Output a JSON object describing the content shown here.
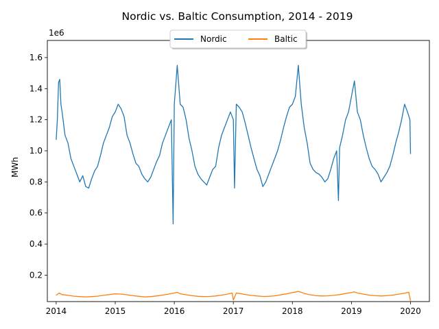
{
  "chart_data": {
    "type": "line",
    "title": "Nordic vs. Baltic Consumption,  2014 - 2019",
    "xlabel": "",
    "ylabel": "MWh",
    "y_offset_label": "1e6",
    "xlim": [
      2013.85,
      2020.32
    ],
    "ylim": [
      0.03,
      1.71
    ],
    "x_ticks": [
      2014,
      2015,
      2016,
      2017,
      2018,
      2019,
      2020
    ],
    "x_tick_labels": [
      "2014",
      "2015",
      "2016",
      "2017",
      "2018",
      "2019",
      "2020"
    ],
    "y_ticks": [
      0.2,
      0.4,
      0.6,
      0.8,
      1.0,
      1.2,
      1.4,
      1.6
    ],
    "y_tick_labels": [
      "0.2",
      "0.4",
      "0.6",
      "0.8",
      "1.0",
      "1.2",
      "1.4",
      "1.6"
    ],
    "grid": false,
    "legend_position": "top-center",
    "series": [
      {
        "name": "Nordic",
        "color": "#1f77b4",
        "x": [
          2014.0,
          2014.02,
          2014.04,
          2014.06,
          2014.08,
          2014.1,
          2014.15,
          2014.2,
          2014.25,
          2014.3,
          2014.35,
          2014.4,
          2014.45,
          2014.5,
          2014.55,
          2014.6,
          2014.65,
          2014.7,
          2014.75,
          2014.8,
          2014.85,
          2014.9,
          2014.95,
          2015.0,
          2015.05,
          2015.1,
          2015.15,
          2015.2,
          2015.25,
          2015.3,
          2015.35,
          2015.4,
          2015.45,
          2015.5,
          2015.55,
          2015.6,
          2015.65,
          2015.7,
          2015.75,
          2015.8,
          2015.85,
          2015.9,
          2015.95,
          2015.98,
          2016.0,
          2016.05,
          2016.1,
          2016.15,
          2016.2,
          2016.25,
          2016.3,
          2016.35,
          2016.4,
          2016.45,
          2016.5,
          2016.55,
          2016.6,
          2016.65,
          2016.7,
          2016.75,
          2016.8,
          2016.85,
          2016.9,
          2016.95,
          2017.0,
          2017.02,
          2017.05,
          2017.1,
          2017.15,
          2017.2,
          2017.25,
          2017.3,
          2017.35,
          2017.4,
          2017.45,
          2017.5,
          2017.55,
          2017.6,
          2017.65,
          2017.7,
          2017.75,
          2017.8,
          2017.85,
          2017.9,
          2017.95,
          2018.0,
          2018.05,
          2018.1,
          2018.15,
          2018.2,
          2018.25,
          2018.3,
          2018.35,
          2018.4,
          2018.45,
          2018.5,
          2018.55,
          2018.6,
          2018.65,
          2018.7,
          2018.75,
          2018.78,
          2018.8,
          2018.85,
          2018.9,
          2018.95,
          2019.0,
          2019.05,
          2019.1,
          2019.15,
          2019.2,
          2019.25,
          2019.3,
          2019.35,
          2019.4,
          2019.45,
          2019.5,
          2019.55,
          2019.6,
          2019.65,
          2019.7,
          2019.75,
          2019.8,
          2019.85,
          2019.9,
          2019.95,
          2019.99,
          2020.0
        ],
        "values": [
          1.07,
          1.2,
          1.44,
          1.46,
          1.3,
          1.25,
          1.1,
          1.05,
          0.95,
          0.9,
          0.85,
          0.8,
          0.84,
          0.77,
          0.76,
          0.82,
          0.87,
          0.9,
          0.97,
          1.05,
          1.1,
          1.15,
          1.22,
          1.25,
          1.3,
          1.27,
          1.22,
          1.1,
          1.05,
          0.98,
          0.92,
          0.9,
          0.85,
          0.82,
          0.8,
          0.83,
          0.88,
          0.93,
          0.97,
          1.05,
          1.1,
          1.15,
          1.2,
          0.53,
          1.3,
          1.55,
          1.3,
          1.28,
          1.2,
          1.08,
          1.0,
          0.9,
          0.85,
          0.82,
          0.8,
          0.78,
          0.83,
          0.88,
          0.9,
          1.02,
          1.1,
          1.15,
          1.2,
          1.25,
          1.2,
          0.76,
          1.3,
          1.28,
          1.25,
          1.18,
          1.1,
          1.02,
          0.95,
          0.88,
          0.84,
          0.77,
          0.8,
          0.85,
          0.9,
          0.95,
          1.0,
          1.07,
          1.15,
          1.22,
          1.28,
          1.3,
          1.35,
          1.55,
          1.3,
          1.15,
          1.05,
          0.92,
          0.88,
          0.86,
          0.85,
          0.83,
          0.8,
          0.82,
          0.88,
          0.95,
          1.0,
          0.68,
          1.02,
          1.1,
          1.2,
          1.25,
          1.35,
          1.45,
          1.25,
          1.2,
          1.1,
          1.02,
          0.95,
          0.9,
          0.88,
          0.85,
          0.8,
          0.83,
          0.86,
          0.9,
          0.97,
          1.05,
          1.12,
          1.2,
          1.3,
          1.25,
          1.2,
          0.98
        ]
      },
      {
        "name": "Baltic",
        "color": "#ff7f0e",
        "x": [
          2014.0,
          2014.05,
          2014.1,
          2014.2,
          2014.3,
          2014.4,
          2014.5,
          2014.6,
          2014.7,
          2014.8,
          2014.9,
          2015.0,
          2015.1,
          2015.2,
          2015.3,
          2015.4,
          2015.5,
          2015.6,
          2015.7,
          2015.8,
          2015.9,
          2016.0,
          2016.05,
          2016.1,
          2016.2,
          2016.3,
          2016.4,
          2016.5,
          2016.6,
          2016.7,
          2016.8,
          2016.9,
          2016.98,
          2017.0,
          2017.05,
          2017.1,
          2017.2,
          2017.3,
          2017.4,
          2017.5,
          2017.6,
          2017.7,
          2017.8,
          2017.9,
          2018.0,
          2018.1,
          2018.15,
          2018.2,
          2018.3,
          2018.4,
          2018.5,
          2018.6,
          2018.7,
          2018.8,
          2018.9,
          2019.0,
          2019.05,
          2019.1,
          2019.2,
          2019.3,
          2019.4,
          2019.5,
          2019.6,
          2019.7,
          2019.8,
          2019.9,
          2019.97,
          2020.0
        ],
        "values": [
          0.07,
          0.085,
          0.075,
          0.07,
          0.065,
          0.062,
          0.06,
          0.062,
          0.065,
          0.07,
          0.075,
          0.08,
          0.078,
          0.074,
          0.068,
          0.064,
          0.06,
          0.062,
          0.066,
          0.072,
          0.078,
          0.085,
          0.09,
          0.08,
          0.074,
          0.068,
          0.064,
          0.062,
          0.063,
          0.066,
          0.072,
          0.078,
          0.085,
          0.04,
          0.085,
          0.082,
          0.076,
          0.07,
          0.066,
          0.063,
          0.064,
          0.067,
          0.073,
          0.08,
          0.088,
          0.095,
          0.09,
          0.082,
          0.074,
          0.068,
          0.066,
          0.067,
          0.07,
          0.075,
          0.082,
          0.088,
          0.092,
          0.085,
          0.078,
          0.072,
          0.068,
          0.066,
          0.068,
          0.072,
          0.078,
          0.084,
          0.09,
          0.035
        ]
      }
    ]
  }
}
